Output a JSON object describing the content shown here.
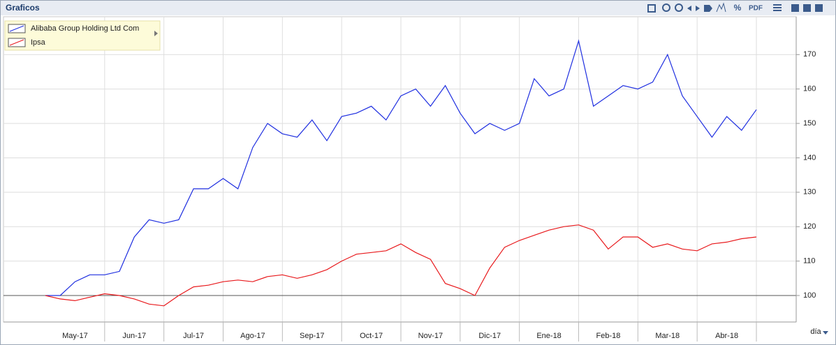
{
  "panel": {
    "title": "Graficos",
    "toolbar": [
      "%",
      "PDF"
    ],
    "interval": "día"
  },
  "chart_data": {
    "type": "line",
    "categories": [
      "May-17",
      null,
      null,
      null,
      "Jun-17",
      null,
      null,
      null,
      "Jul-17",
      null,
      null,
      null,
      "Ago-17",
      null,
      null,
      null,
      "Sep-17",
      null,
      null,
      null,
      "Oct-17",
      null,
      null,
      null,
      "Nov-17",
      null,
      null,
      null,
      "Dic-17",
      null,
      null,
      null,
      "Ene-18",
      null,
      null,
      null,
      "Feb-18",
      null,
      null,
      null,
      "Mar-18",
      null,
      null,
      null,
      "Abr-18",
      null,
      null,
      null,
      null
    ],
    "series": [
      {
        "name": "Alibaba Group Holding Ltd Com",
        "color": "#1f2fe0",
        "values": [
          100,
          100,
          104,
          106,
          106,
          107,
          117,
          122,
          121,
          122,
          131,
          131,
          134,
          131,
          143,
          150,
          147,
          146,
          151,
          145,
          152,
          153,
          155,
          151,
          158,
          160,
          155,
          161,
          153,
          147,
          150,
          148,
          150,
          163,
          158,
          160,
          174,
          155,
          158,
          161,
          160,
          162,
          170,
          158,
          152,
          146,
          152,
          148,
          154
        ]
      },
      {
        "name": "Ipsa",
        "color": "#e8191c",
        "values": [
          100,
          99,
          98.5,
          99.5,
          100.5,
          100,
          99,
          97.5,
          97,
          100,
          102.5,
          103,
          104,
          104.5,
          104,
          105.5,
          106,
          105,
          106,
          107.5,
          110,
          112,
          112.5,
          113,
          115,
          112.5,
          110.5,
          103.5,
          102,
          100,
          108,
          114,
          116,
          117.5,
          119,
          120,
          120.5,
          119,
          113.5,
          117,
          117,
          114,
          115,
          113.5,
          113,
          115,
          115.5,
          116.5,
          117
        ]
      }
    ],
    "ylim": [
      92.3,
      181
    ],
    "yticks": [
      100,
      110,
      120,
      130,
      140,
      150,
      160,
      170
    ],
    "baseline": 100,
    "grid": true,
    "legend": "top-left"
  }
}
